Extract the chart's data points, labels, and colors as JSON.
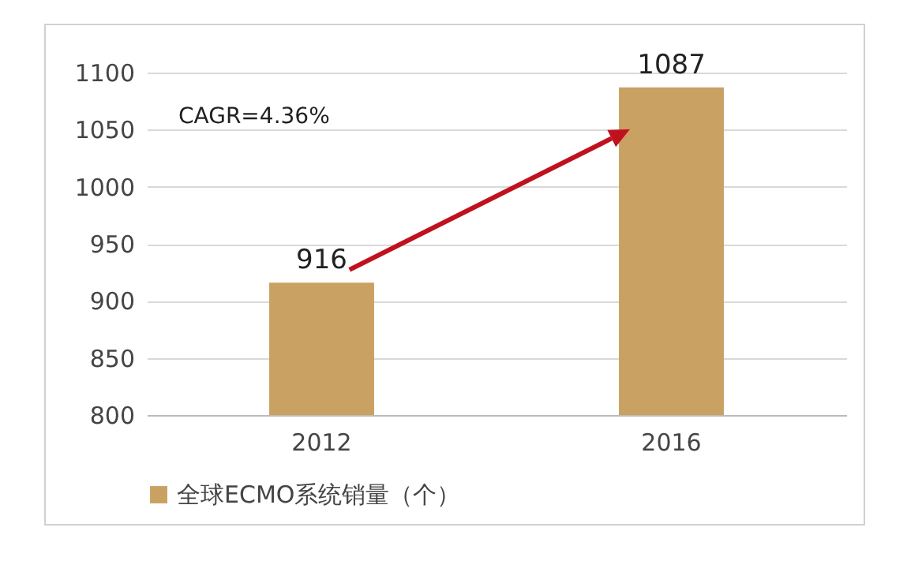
{
  "chart_data": {
    "type": "bar",
    "categories": [
      "2012",
      "2016"
    ],
    "series": [
      {
        "name": "全球ECMO系统销量（个）",
        "color": "#c9a163",
        "values": [
          916,
          1087
        ]
      }
    ],
    "ylim": [
      800,
      1100
    ],
    "yticks": [
      800,
      850,
      900,
      950,
      1000,
      1050,
      1100
    ],
    "grid": "y",
    "legend": "bottom",
    "data_labels": true,
    "annotations": [
      "CAGR=4.36%"
    ]
  }
}
